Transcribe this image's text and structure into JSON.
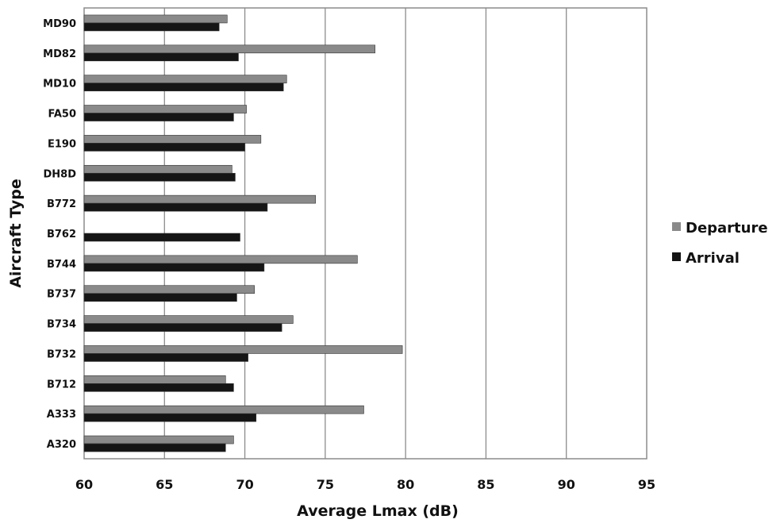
{
  "chart_data": {
    "type": "bar",
    "orientation": "horizontal",
    "title": "",
    "xlabel": "Average Lmax (dB)",
    "ylabel": "Aircraft Type",
    "xlim": [
      60,
      95
    ],
    "xticks": [
      60,
      65,
      70,
      75,
      80,
      85,
      90,
      95
    ],
    "grid": "vertical",
    "legend_position": "right",
    "categories": [
      "MD90",
      "MD82",
      "MD10",
      "FA50",
      "E190",
      "DH8D",
      "B772",
      "B762",
      "B744",
      "B737",
      "B734",
      "B732",
      "B712",
      "A333",
      "A320"
    ],
    "series": [
      {
        "name": "Departure",
        "color": "#8a8a8a",
        "values": [
          68.9,
          78.1,
          72.6,
          70.1,
          71.0,
          69.2,
          74.4,
          60.0,
          77.0,
          70.6,
          73.0,
          79.8,
          68.8,
          77.4,
          69.3
        ]
      },
      {
        "name": "Arrival",
        "color": "#151515",
        "values": [
          68.4,
          69.6,
          72.4,
          69.3,
          70.0,
          69.4,
          71.4,
          69.7,
          71.2,
          69.5,
          72.3,
          70.2,
          69.3,
          70.7,
          68.8
        ]
      }
    ]
  }
}
